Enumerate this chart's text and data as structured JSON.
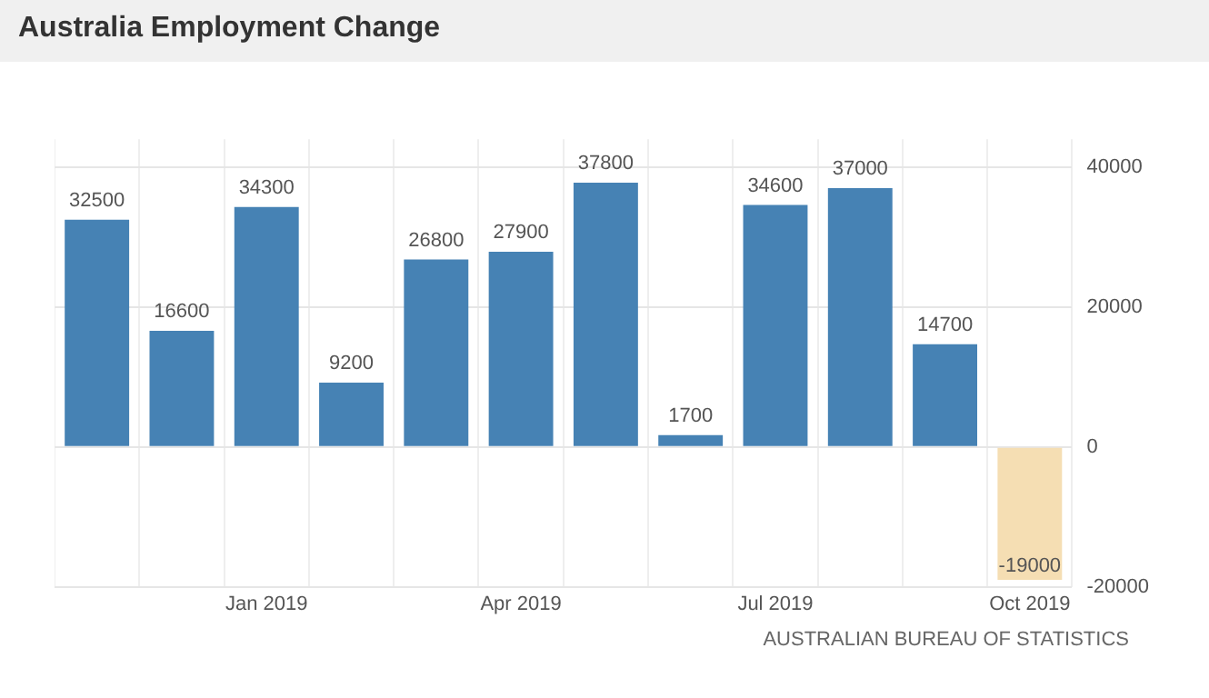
{
  "chart_data": {
    "type": "bar",
    "title": "Australia Employment Change",
    "categories": [
      null,
      null,
      "Jan 2019",
      null,
      null,
      "Apr 2019",
      null,
      null,
      "Jul 2019",
      null,
      null,
      "Oct 2019"
    ],
    "values": [
      32500,
      16600,
      34300,
      9200,
      26800,
      27900,
      37800,
      1700,
      34600,
      37000,
      14700,
      -19000
    ],
    "colors": [
      "#4682b4",
      "#4682b4",
      "#4682b4",
      "#4682b4",
      "#4682b4",
      "#4682b4",
      "#4682b4",
      "#4682b4",
      "#4682b4",
      "#4682b4",
      "#4682b4",
      "#f5deb3"
    ],
    "ylim": [
      -20000,
      44000
    ],
    "yticks": [
      -20000,
      0,
      20000,
      40000
    ],
    "grid": true,
    "data_labels": true,
    "annotations": [
      "AUSTRALIAN BUREAU OF STATISTICS"
    ]
  }
}
